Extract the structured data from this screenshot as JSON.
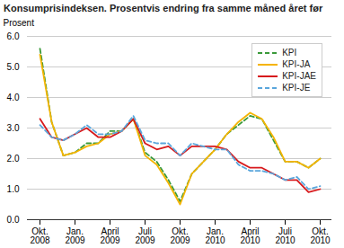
{
  "chart_data": {
    "type": "line",
    "title": "Konsumprisindeksen. Prosentvis endring fra samme måned året før",
    "y_label": "Prosent",
    "categories": [
      "Okt.\n2008",
      null,
      null,
      "Jan.\n2009",
      null,
      null,
      "April\n2009",
      null,
      null,
      "Juli\n2009",
      null,
      null,
      "Okt.\n2009",
      null,
      null,
      "Jan.\n2010",
      null,
      null,
      "April\n2010",
      null,
      null,
      "Juli\n2010",
      null,
      null,
      "Okt.\n2010"
    ],
    "series": [
      {
        "name": "KPI",
        "color": "#3a9a3a",
        "line_style": "dashed",
        "values": [
          5.6,
          3.2,
          2.1,
          2.2,
          2.5,
          2.5,
          2.9,
          2.9,
          3.3,
          2.2,
          1.9,
          1.3,
          0.6,
          1.5,
          1.9,
          2.3,
          2.8,
          3.1,
          3.4,
          3.3,
          2.6,
          1.9,
          1.9,
          1.7,
          2.0
        ]
      },
      {
        "name": "KPI-JA",
        "color": "#f5b400",
        "line_style": "solid",
        "values": [
          5.4,
          3.2,
          2.1,
          2.2,
          2.4,
          2.5,
          2.8,
          2.9,
          3.3,
          2.1,
          1.8,
          1.2,
          0.5,
          1.5,
          1.9,
          2.3,
          2.8,
          3.2,
          3.5,
          3.3,
          2.7,
          1.9,
          1.9,
          1.7,
          2.0
        ]
      },
      {
        "name": "KPI-JAE",
        "color": "#d7191c",
        "line_style": "solid",
        "values": [
          3.3,
          2.7,
          2.6,
          2.8,
          3.0,
          2.7,
          2.7,
          2.9,
          3.3,
          2.5,
          2.3,
          2.4,
          2.1,
          2.4,
          2.4,
          2.4,
          2.3,
          1.9,
          1.7,
          1.7,
          1.5,
          1.3,
          1.3,
          0.9,
          1.0
        ]
      },
      {
        "name": "KPI-JE",
        "color": "#5aa6dc",
        "line_style": "dashed",
        "values": [
          3.1,
          2.7,
          2.6,
          2.8,
          3.1,
          2.8,
          2.8,
          2.9,
          3.4,
          2.6,
          2.5,
          2.5,
          2.1,
          2.5,
          2.4,
          2.3,
          2.3,
          1.8,
          1.6,
          1.6,
          1.5,
          1.3,
          1.4,
          1.0,
          1.1
        ]
      }
    ],
    "ylim": [
      0,
      6
    ],
    "yticks": [
      0,
      1,
      2,
      3,
      4,
      5,
      6
    ],
    "grid": true,
    "legend": "top-right"
  }
}
